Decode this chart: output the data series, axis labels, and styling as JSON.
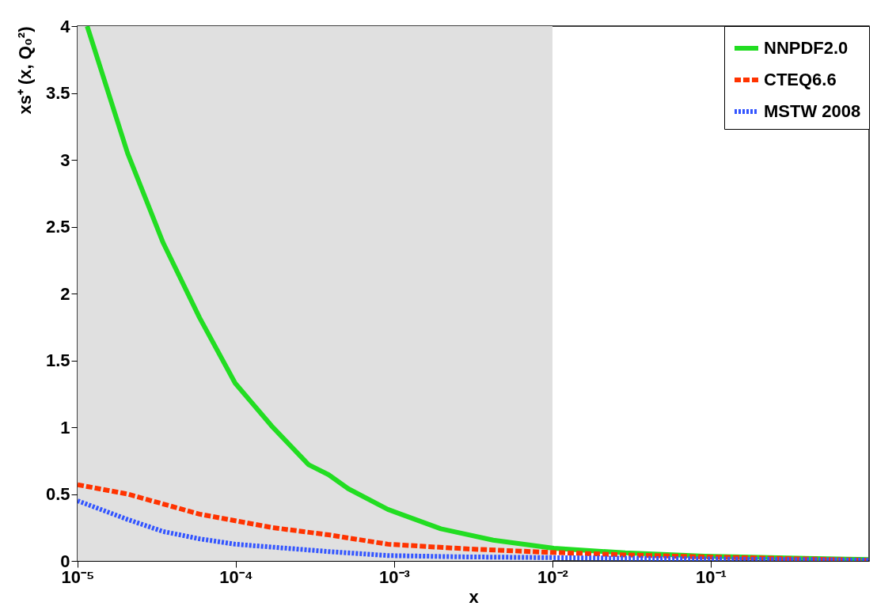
{
  "chart_data": {
    "type": "line",
    "xlabel": "x",
    "ylabel": "xs⁺ (x, Q₀²)",
    "log": "x",
    "legend": "top right",
    "grid": false,
    "xlim": [
      1e-05,
      1
    ],
    "xticks": [
      {
        "value": 1e-05,
        "label": "10⁻⁵"
      },
      {
        "value": 0.0001,
        "label": "10⁻⁴"
      },
      {
        "value": 0.001,
        "label": "10⁻³"
      },
      {
        "value": 0.01,
        "label": "10⁻²"
      },
      {
        "value": 0.1,
        "label": "10⁻¹"
      }
    ],
    "ylim": [
      0,
      4
    ],
    "yticks": [
      0,
      0.5,
      1,
      1.5,
      2,
      2.5,
      3,
      3.5,
      4
    ],
    "bands": [
      {
        "axis": "x",
        "from": 1e-05,
        "to": 0.01,
        "color": "#e0e0e0"
      }
    ],
    "series": [
      {
        "name": "NNPDF2.0",
        "color": "#22dd22",
        "line_style": "solid",
        "x": [
          1.15e-05,
          2.07e-05,
          3.47e-05,
          5.89e-05,
          9.89e-05,
          0.000168,
          0.000288,
          0.000385,
          0.000513,
          0.000912,
          0.00197,
          0.00422,
          0.0102,
          0.0288,
          0.0912,
          0.99
        ],
        "values": [
          4.0,
          3.05,
          2.38,
          1.82,
          1.33,
          1.01,
          0.72,
          0.645,
          0.54,
          0.385,
          0.24,
          0.155,
          0.095,
          0.06,
          0.035,
          0.01
        ]
      },
      {
        "name": "CTEQ6.6",
        "color": "#ff3300",
        "line_style": "dashed",
        "x": [
          1e-05,
          2.07e-05,
          5.89e-05,
          0.000168,
          0.000385,
          0.000912,
          0.00288,
          0.00912,
          0.0288,
          0.0912,
          0.99
        ],
        "values": [
          0.57,
          0.5,
          0.35,
          0.25,
          0.195,
          0.125,
          0.09,
          0.065,
          0.045,
          0.03,
          0.005
        ]
      },
      {
        "name": "MSTW 2008",
        "color": "#3355ff",
        "line_style": "dotted",
        "x": [
          1e-05,
          2.07e-05,
          3.47e-05,
          5.89e-05,
          9.89e-05,
          0.000385,
          0.000912,
          0.00288,
          0.00912,
          0.0288,
          0.99
        ],
        "values": [
          0.45,
          0.31,
          0.22,
          0.165,
          0.125,
          0.07,
          0.04,
          0.03,
          0.025,
          0.02,
          0.005
        ]
      }
    ]
  }
}
